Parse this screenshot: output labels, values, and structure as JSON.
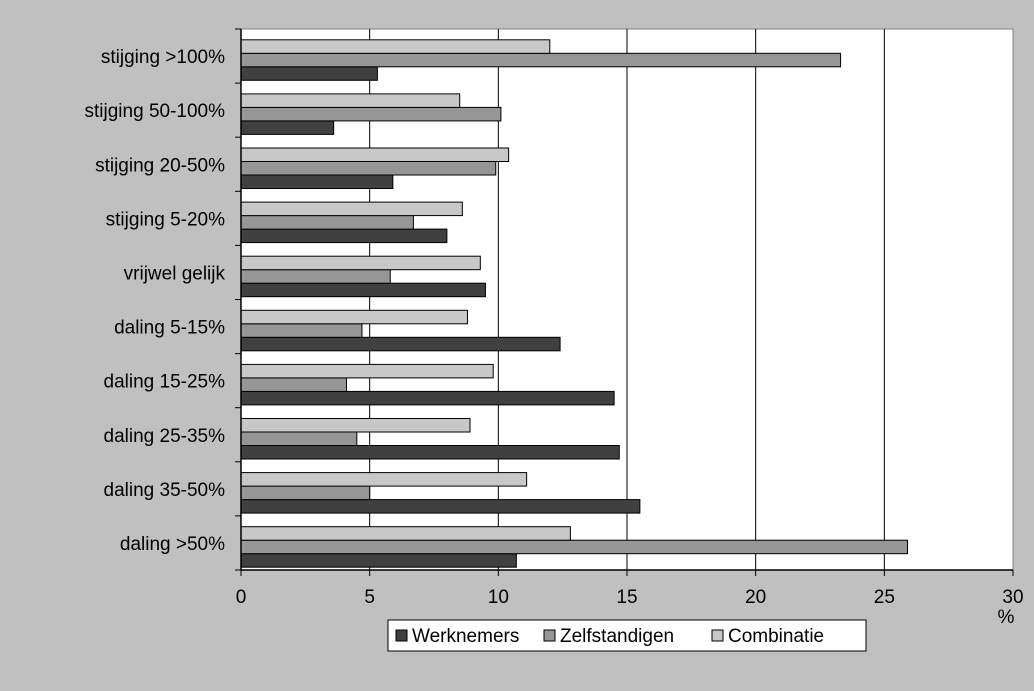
{
  "chart_data": {
    "type": "bar",
    "orientation": "horizontal",
    "categories": [
      "stijging >100%",
      "stijging 50-100%",
      "stijging 20-50%",
      "stijging 5-20%",
      "vrijwel gelijk",
      "daling 5-15%",
      "daling 15-25%",
      "daling 25-35%",
      "daling 35-50%",
      "daling >50%"
    ],
    "series": [
      {
        "name": "Werknemers",
        "color": "#404040",
        "values": [
          5.3,
          3.6,
          5.9,
          8.0,
          9.5,
          12.4,
          14.5,
          14.7,
          15.5,
          10.7
        ]
      },
      {
        "name": "Zelfstandigen",
        "color": "#969696",
        "values": [
          23.3,
          10.1,
          9.9,
          6.7,
          5.8,
          4.7,
          4.1,
          4.5,
          5.0,
          25.9
        ]
      },
      {
        "name": "Combinatie",
        "color": "#c8c8c8",
        "values": [
          12.0,
          8.5,
          10.4,
          8.6,
          9.3,
          8.8,
          9.8,
          8.9,
          11.1,
          12.8
        ]
      }
    ],
    "xlim": [
      0,
      30
    ],
    "xticks": [
      0,
      5,
      10,
      15,
      20,
      25,
      30
    ],
    "xunit": "%",
    "title": "",
    "xlabel": "",
    "ylabel": "",
    "grid": "vertical",
    "legend": "bottom",
    "background_color": "#c0c0c0",
    "plot_area_color": "#ffffff"
  }
}
